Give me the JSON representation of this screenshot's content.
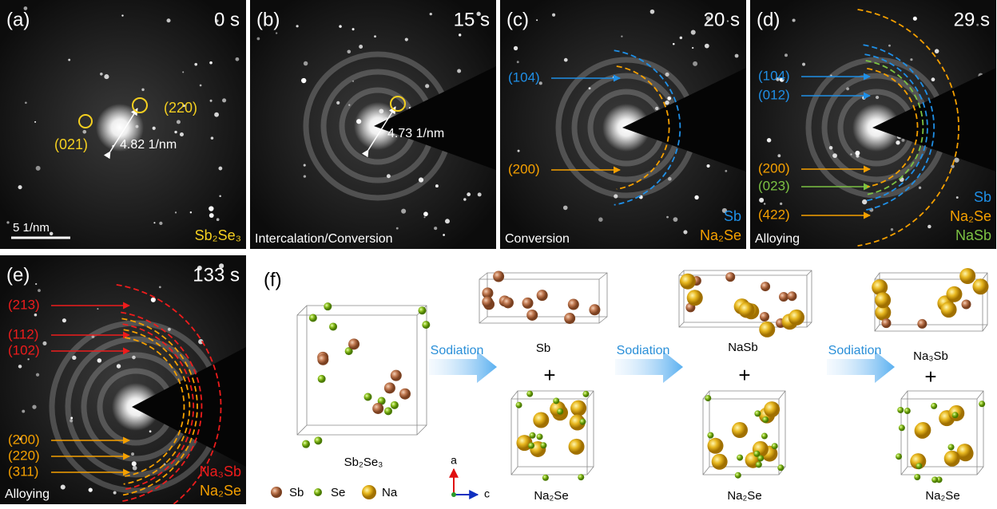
{
  "panels": [
    {
      "label": "(a)",
      "time": "0 s",
      "planes": [
        {
          "text": "(220)",
          "color": "#f5d020"
        },
        {
          "text": "(021)",
          "color": "#f5d020"
        }
      ],
      "distance": "4.82 1/nm",
      "scale": "5 1/nm",
      "phases": [
        {
          "text": "Sb₂Se₃",
          "color": "#f5d020"
        }
      ]
    },
    {
      "label": "(b)",
      "time": "15 s",
      "distance": "4.73 1/nm",
      "process": "Intercalation/Conversion"
    },
    {
      "label": "(c)",
      "time": "20 s",
      "planes": [
        {
          "text": "(104)",
          "color": "#1f8fe6"
        },
        {
          "text": "(200)",
          "color": "#f5a000"
        }
      ],
      "process": "Conversion",
      "phases": [
        {
          "text": "Sb",
          "color": "#1f8fe6"
        },
        {
          "text": "Na₂Se",
          "color": "#f5a000"
        }
      ]
    },
    {
      "label": "(d)",
      "time": "29 s",
      "planes": [
        {
          "text": "(104)",
          "color": "#1f8fe6"
        },
        {
          "text": "(012)",
          "color": "#1f8fe6"
        },
        {
          "text": "(200)",
          "color": "#f5a000"
        },
        {
          "text": "(023)",
          "color": "#7cc243"
        },
        {
          "text": "(422)",
          "color": "#f5a000"
        }
      ],
      "process": "Alloying",
      "phases": [
        {
          "text": "Sb",
          "color": "#1f8fe6"
        },
        {
          "text": "Na₂Se",
          "color": "#f5a000"
        },
        {
          "text": "NaSb",
          "color": "#7cc243"
        }
      ]
    },
    {
      "label": "(e)",
      "time": "133 s",
      "planes": [
        {
          "text": "(213)",
          "color": "#ee1c1c"
        },
        {
          "text": "(112)",
          "color": "#ee1c1c"
        },
        {
          "text": "(102)",
          "color": "#ee1c1c"
        },
        {
          "text": "(200)",
          "color": "#f5a000"
        },
        {
          "text": "(220)",
          "color": "#f5a000"
        },
        {
          "text": "(311)",
          "color": "#f5a000"
        }
      ],
      "process": "Alloying",
      "phases": [
        {
          "text": "Na₃Sb",
          "color": "#ee1c1c"
        },
        {
          "text": "Na₂Se",
          "color": "#f5a000"
        }
      ]
    }
  ],
  "schematic": {
    "label": "(f)",
    "arrows": [
      "Sodiation",
      "Sodiation",
      "Sodiation"
    ],
    "structures": [
      "Sb₂Se₃",
      "Sb",
      "Na₂Se",
      "NaSb",
      "Na₂Se",
      "Na₃Sb",
      "Na₂Se"
    ],
    "plus": [
      "+",
      "+",
      "+"
    ],
    "legend": [
      "Sb",
      "Se",
      "Na"
    ],
    "axes": [
      "a",
      "c"
    ]
  }
}
